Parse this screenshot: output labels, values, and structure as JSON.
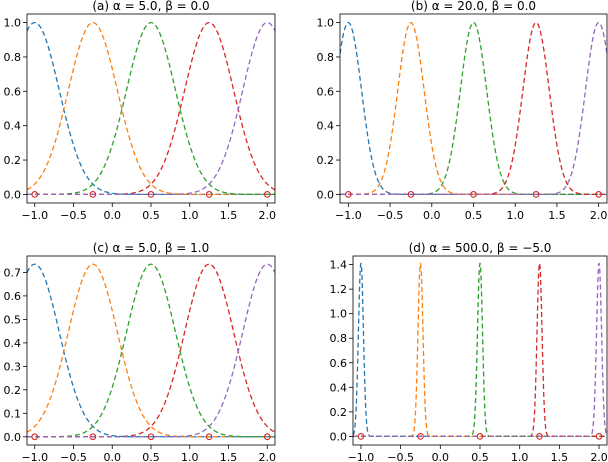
{
  "chart_data": [
    {
      "type": "line",
      "title": "(a) α = 5.0, β = 0.0",
      "alpha": 5.0,
      "beta": 0.0,
      "xlim": [
        -1.1,
        2.1
      ],
      "ylim": [
        -0.05,
        1.05
      ],
      "xticks": [
        -1.0,
        -0.5,
        0.0,
        0.5,
        1.0,
        1.5,
        2.0
      ],
      "xtick_labels": [
        "−1.0",
        "−0.5",
        "0.0",
        "0.5",
        "1.0",
        "1.5",
        "2.0"
      ],
      "yticks": [
        0.0,
        0.2,
        0.4,
        0.6,
        0.8,
        1.0
      ],
      "ytick_labels": [
        "0.0",
        "0.2",
        "0.4",
        "0.6",
        "0.8",
        "1.0"
      ],
      "centers": [
        -1.0,
        -0.25,
        0.5,
        1.25,
        2.0
      ],
      "peak": 1.0,
      "markers": {
        "x": [
          -1.0,
          -0.25,
          0.5,
          1.25,
          2.0
        ],
        "y": [
          0,
          0,
          0,
          0,
          0
        ]
      }
    },
    {
      "type": "line",
      "title": "(b) α = 20.0, β = 0.0",
      "alpha": 20.0,
      "beta": 0.0,
      "xlim": [
        -1.1,
        2.1
      ],
      "ylim": [
        -0.05,
        1.05
      ],
      "xticks": [
        -1.0,
        -0.5,
        0.0,
        0.5,
        1.0,
        1.5,
        2.0
      ],
      "xtick_labels": [
        "−1.0",
        "−0.5",
        "0.0",
        "0.5",
        "1.0",
        "1.5",
        "2.0"
      ],
      "yticks": [
        0.0,
        0.2,
        0.4,
        0.6,
        0.8,
        1.0
      ],
      "ytick_labels": [
        "0.0",
        "0.2",
        "0.4",
        "0.6",
        "0.8",
        "1.0"
      ],
      "centers": [
        -1.0,
        -0.25,
        0.5,
        1.25,
        2.0
      ],
      "peak": 1.0,
      "markers": {
        "x": [
          -1.0,
          -0.25,
          0.5,
          1.25,
          2.0
        ],
        "y": [
          0,
          0,
          0,
          0,
          0
        ]
      }
    },
    {
      "type": "line",
      "title": "(c) α = 5.0, β = 1.0",
      "alpha": 5.0,
      "beta": 1.0,
      "xlim": [
        -1.1,
        2.1
      ],
      "ylim": [
        -0.035,
        0.77
      ],
      "xticks": [
        -1.0,
        -0.5,
        0.0,
        0.5,
        1.0,
        1.5,
        2.0
      ],
      "xtick_labels": [
        "−1.0",
        "−0.5",
        "0.0",
        "0.5",
        "1.0",
        "1.5",
        "2.0"
      ],
      "yticks": [
        0.0,
        0.1,
        0.2,
        0.3,
        0.4,
        0.5,
        0.6,
        0.7
      ],
      "ytick_labels": [
        "0.0",
        "0.1",
        "0.2",
        "0.3",
        "0.4",
        "0.5",
        "0.6",
        "0.7"
      ],
      "centers": [
        -1.0,
        -0.25,
        0.5,
        1.25,
        2.0
      ],
      "peak": 0.735,
      "markers": {
        "x": [
          -1.0,
          -0.25,
          0.5,
          1.25,
          2.0
        ],
        "y": [
          0,
          0,
          0,
          0,
          0
        ]
      }
    },
    {
      "type": "line",
      "title": "(d) α = 500.0, β = −5.0",
      "alpha": 500.0,
      "beta": -5.0,
      "xlim": [
        -1.1,
        2.1
      ],
      "ylim": [
        -0.07,
        1.47
      ],
      "xticks": [
        -1.0,
        -0.5,
        0.0,
        0.5,
        1.0,
        1.5,
        2.0
      ],
      "xtick_labels": [
        "−1.0",
        "−0.5",
        "0.0",
        "0.5",
        "1.0",
        "1.5",
        "2.0"
      ],
      "yticks": [
        0.0,
        0.2,
        0.4,
        0.6,
        0.8,
        1.0,
        1.2,
        1.4
      ],
      "ytick_labels": [
        "0.0",
        "0.2",
        "0.4",
        "0.6",
        "0.8",
        "1.0",
        "1.2",
        "1.4"
      ],
      "centers": [
        -1.0,
        -0.25,
        0.5,
        1.25,
        2.0
      ],
      "peak": 1.41,
      "markers": {
        "x": [
          -1.0,
          -0.25,
          0.5,
          1.25,
          2.0
        ],
        "y": [
          0,
          0,
          0,
          0,
          0
        ]
      }
    }
  ],
  "colors": {
    "series": [
      "#1f77b4",
      "#ff7f0e",
      "#2ca02c",
      "#d62728",
      "#9467bd"
    ],
    "marker": "#d62728"
  }
}
